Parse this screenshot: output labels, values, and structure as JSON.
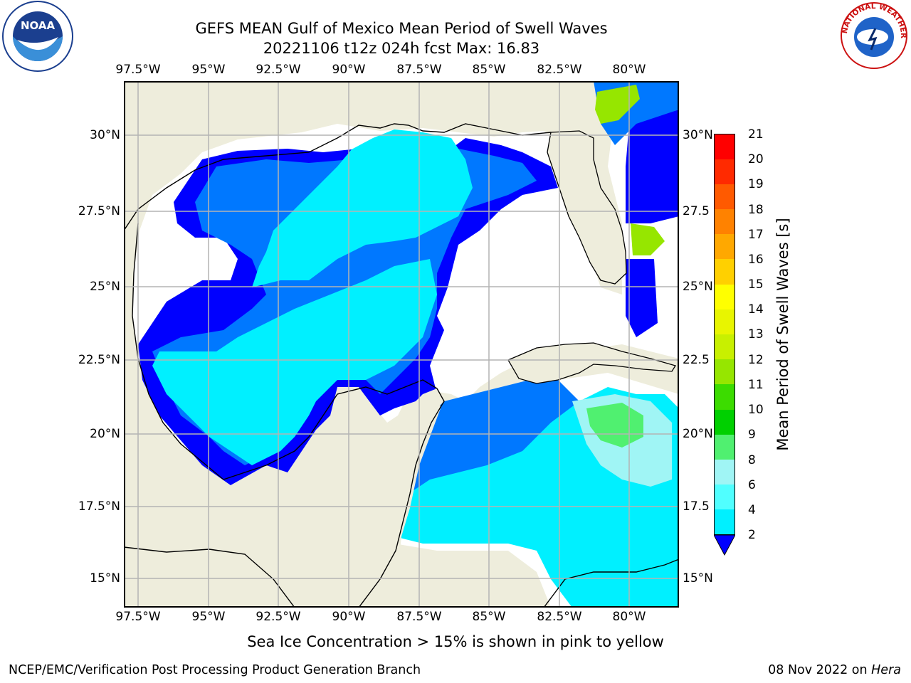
{
  "title_line1": "GEFS MEAN Gulf of Mexico Mean Period of Swell Waves",
  "title_line2": "20221106 t12z 024h fcst   Max: 16.83",
  "lon_labels": [
    "97.5°W",
    "95°W",
    "92.5°W",
    "90°W",
    "87.5°W",
    "85°W",
    "82.5°W",
    "80°W"
  ],
  "lat_labels_left": [
    "30°N",
    "27.5°N",
    "25°N",
    "22.5°N",
    "20°N",
    "17.5°N",
    "15°N"
  ],
  "lat_labels_right": [
    "30°N",
    "27.5",
    "25°N",
    "22.5",
    "20°N",
    "17.5",
    "15°N"
  ],
  "colorbar": {
    "label": "Mean Period of Swell Waves [s]",
    "ticks": [
      "21",
      "20",
      "19",
      "18",
      "17",
      "16",
      "15",
      "14",
      "13",
      "12",
      "11",
      "10",
      "9",
      "8",
      "6",
      "4",
      "2"
    ],
    "colors": [
      "#ff0000",
      "#ff2a00",
      "#ff5a00",
      "#ff8200",
      "#ffa800",
      "#ffd000",
      "#ffff00",
      "#e8f500",
      "#c8f000",
      "#96e600",
      "#3cdc00",
      "#00d000",
      "#50f070",
      "#a0f5f5",
      "#50ffff",
      "#00f0ff",
      "#0078ff",
      "#0000ff"
    ]
  },
  "colors": {
    "land": "#eeeddc",
    "no_data": "#ffffff",
    "grid": "#b4b4b4"
  },
  "footnote": "Sea Ice Concentration > 15% is shown in pink to yellow",
  "credit_left": "NCEP/EMC/Verification Post Processing Product Generation Branch",
  "credit_right_date": "08 Nov 2022 on ",
  "credit_right_host": "Hera",
  "logos": {
    "left": "NOAA",
    "right": "NATIONAL WEATHER SERVICE"
  }
}
